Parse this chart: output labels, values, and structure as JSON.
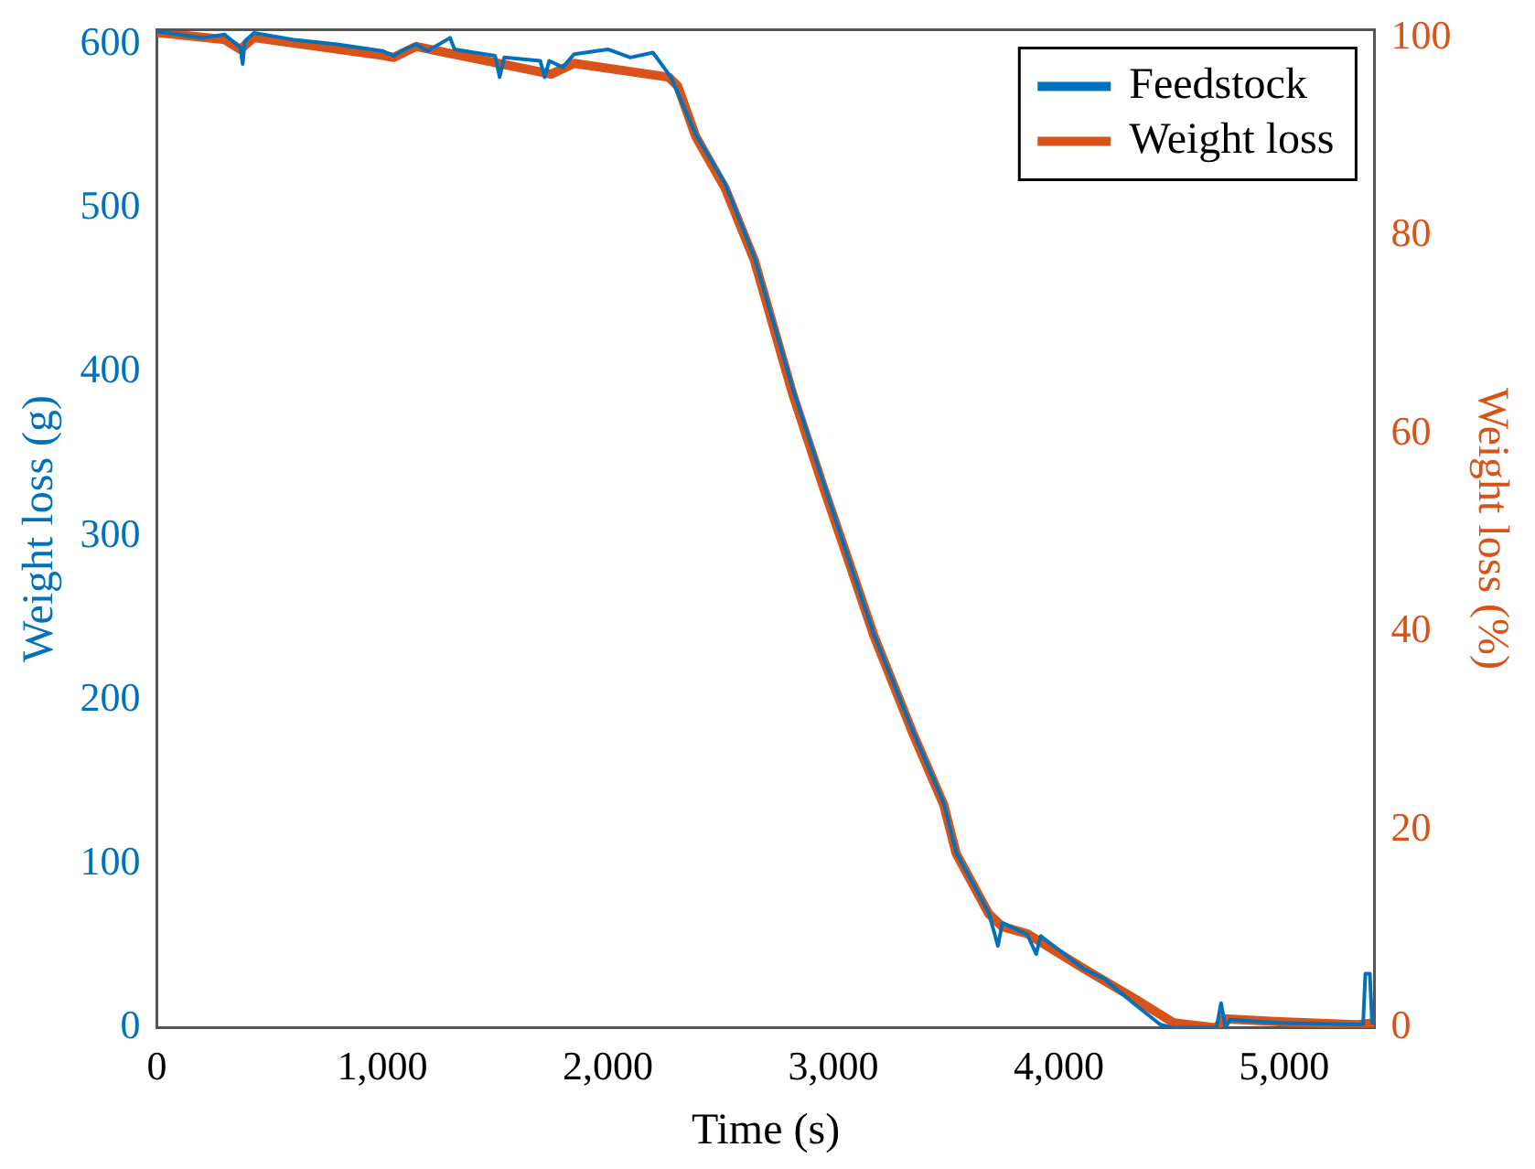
{
  "chart_data": {
    "type": "line",
    "xlabel": "Time (s)",
    "ylabel": "Weight loss (g)",
    "y2label": "Weight loss (%)",
    "xlim": [
      0,
      5400
    ],
    "xticks": [
      0,
      {
        "value": 1000,
        "label": "1,000"
      },
      {
        "value": 2000,
        "label": "2,000"
      },
      {
        "value": 3000,
        "label": "3,000"
      },
      {
        "value": 4000,
        "label": "4,000"
      },
      {
        "value": 5000,
        "label": "5,000"
      }
    ],
    "ylim": [
      0,
      609
    ],
    "yticks": [
      0,
      100,
      200,
      300,
      400,
      500,
      600
    ],
    "y2lim": [
      0,
      100.8
    ],
    "y2ticks": [
      0,
      20,
      40,
      60,
      80,
      100
    ],
    "grid": false,
    "legend": "top right",
    "marker": "none",
    "line_style": "solid",
    "series": [
      {
        "name": "Feedstock",
        "color": "#0072bd",
        "axis": "y",
        "x": [
          0,
          100,
          200,
          300,
          370,
          380,
          390,
          430,
          600,
          800,
          1000,
          1050,
          1100,
          1150,
          1200,
          1300,
          1320,
          1500,
          1520,
          1540,
          1700,
          1720,
          1740,
          1800,
          1850,
          2000,
          2100,
          2200,
          2280,
          2390,
          2520,
          2650,
          2820,
          2950,
          3070,
          3180,
          3350,
          3490,
          3545,
          3690,
          3730,
          3750,
          3860,
          3900,
          3920,
          4110,
          4200,
          4340,
          4450,
          4510,
          4700,
          4720,
          4740,
          4760,
          4980,
          5320,
          5350,
          5360,
          5380,
          5390,
          5400
        ],
        "values": [
          608,
          606,
          604,
          606,
          598,
          588,
          602,
          607,
          603,
          600,
          596,
          593,
          597,
          600,
          596,
          604,
          597,
          593,
          580,
          592,
          590,
          580,
          590,
          586,
          594,
          597,
          592,
          595,
          580,
          545,
          515,
          470,
          390,
          335,
          285,
          240,
          182,
          137,
          107,
          70,
          50,
          64,
          57,
          45,
          56,
          36,
          30,
          14,
          2,
          0,
          0,
          15,
          0,
          5,
          3,
          2,
          2,
          33,
          33,
          3,
          3
        ]
      },
      {
        "name": "Weight loss",
        "color": "#d95319",
        "axis": "y2",
        "x": [
          0,
          300,
          370,
          430,
          1000,
          1050,
          1150,
          1750,
          1850,
          2270,
          2310,
          2390,
          2520,
          2650,
          2820,
          2950,
          3070,
          3180,
          3350,
          3490,
          3545,
          3690,
          3750,
          3860,
          4110,
          4340,
          4510,
          4700,
          4730,
          4980,
          5320,
          5400
        ],
        "values": [
          100.5,
          99.8,
          98.8,
          100,
          98.2,
          98.0,
          99.1,
          96.3,
          97.4,
          96.0,
          95.1,
          90,
          84.8,
          77.5,
          64,
          55,
          47,
          39.6,
          29.9,
          22.5,
          17.6,
          11.5,
          10.2,
          9.5,
          6,
          2.9,
          0.5,
          0,
          0.9,
          0.6,
          0.3,
          0.5
        ]
      }
    ]
  }
}
